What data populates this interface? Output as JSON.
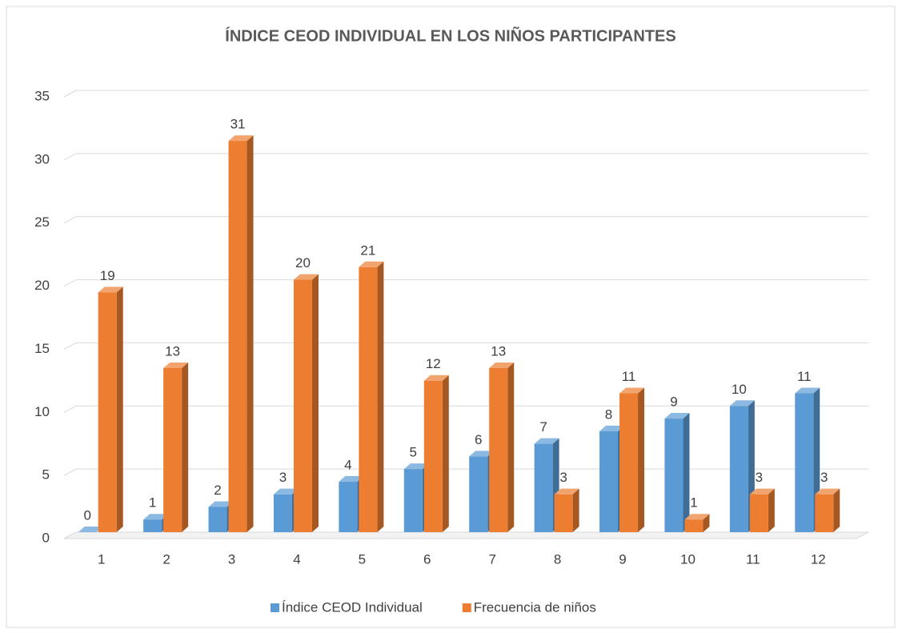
{
  "chart_data": {
    "type": "bar3d",
    "title": "ÍNDICE CEOD INDIVIDUAL EN LOS NIÑOS PARTICIPANTES",
    "categories": [
      "1",
      "2",
      "3",
      "4",
      "5",
      "6",
      "7",
      "8",
      "9",
      "10",
      "11",
      "12"
    ],
    "series": [
      {
        "name": "Índice CEOD Individual",
        "color": "#5b9bd5",
        "values": [
          0,
          1,
          2,
          3,
          4,
          5,
          6,
          7,
          8,
          9,
          10,
          11
        ]
      },
      {
        "name": "Frecuencia de niños",
        "color": "#ed7d31",
        "values": [
          19,
          13,
          31,
          20,
          21,
          12,
          13,
          3,
          11,
          1,
          3,
          3
        ]
      }
    ],
    "ylim": [
      0,
      35
    ],
    "yticks": [
      0,
      5,
      10,
      15,
      20,
      25,
      30,
      35
    ],
    "grid": true,
    "legend": "bottom"
  }
}
